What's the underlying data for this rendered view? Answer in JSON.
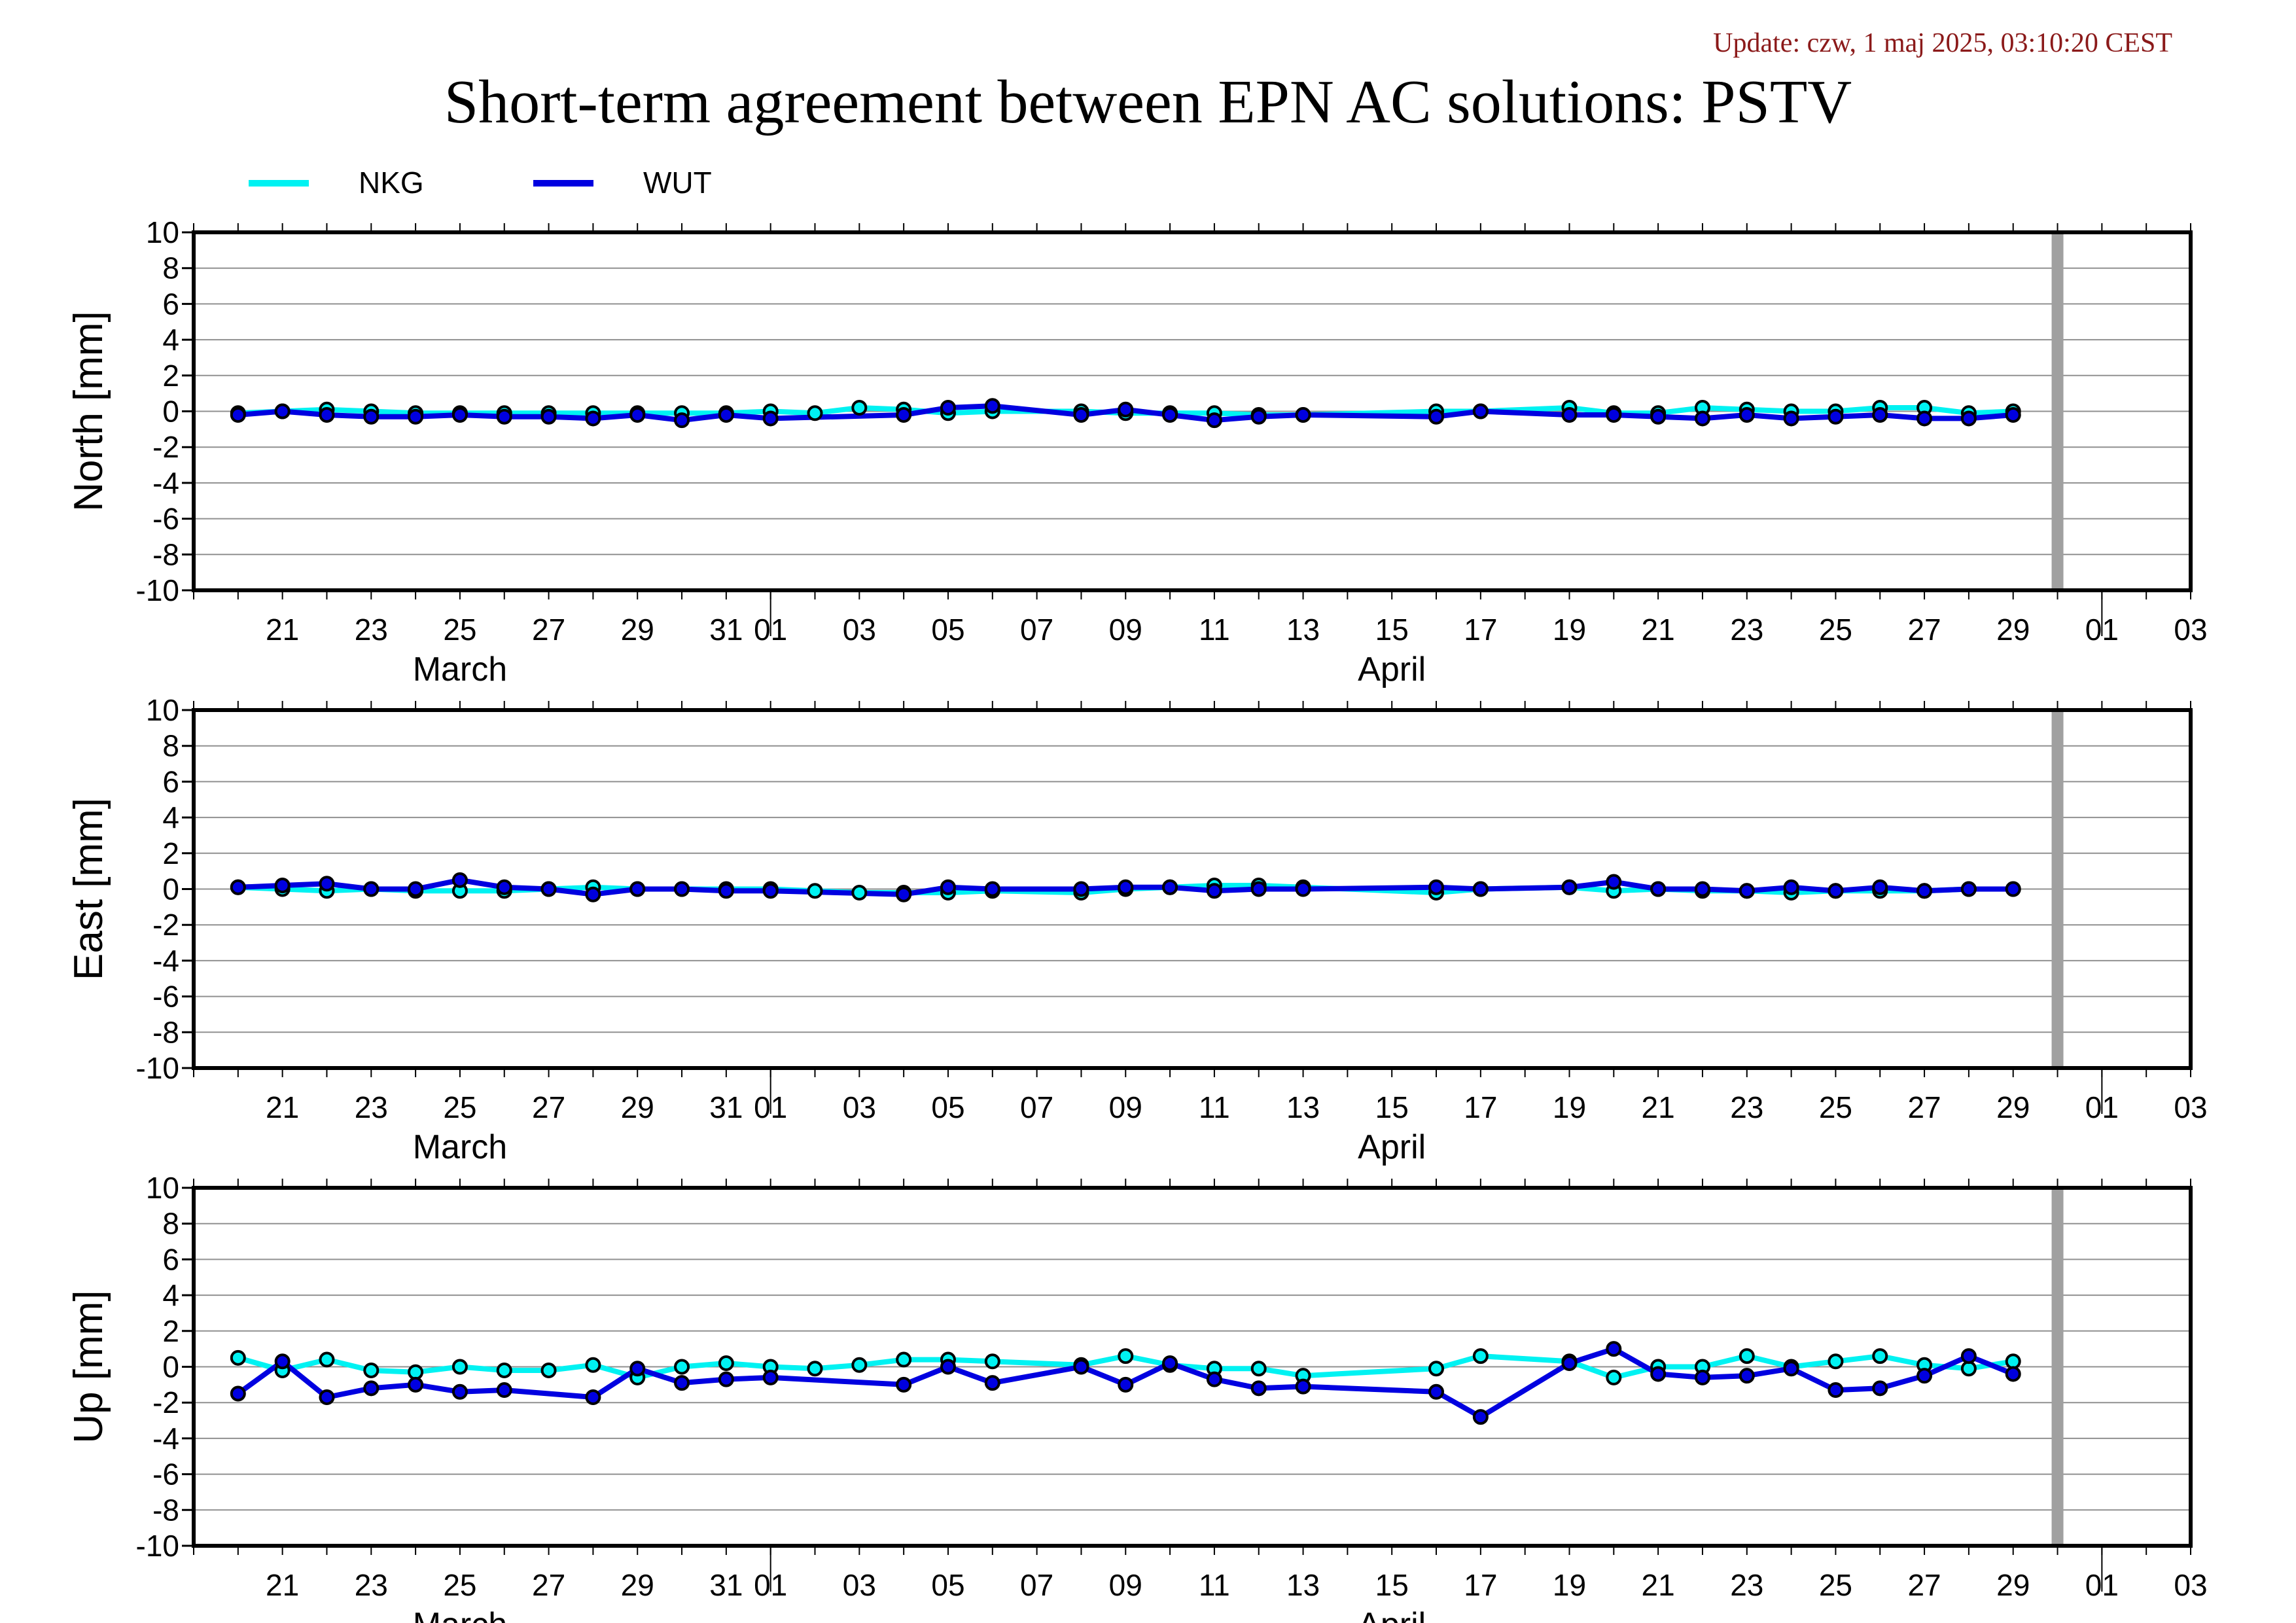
{
  "header": {
    "update": "Update: czw, 1 maj 2025, 03:10:20 CEST",
    "title": "Short-term agreement between EPN AC solutions: PSTV"
  },
  "colors": {
    "NKG": "#00f2f2",
    "WUT": "#0000e0",
    "marker_edge": "#000000",
    "gap_bar": "#a0a0a0"
  },
  "legend": [
    {
      "name": "NKG",
      "color": "#00f2f2"
    },
    {
      "name": "WUT",
      "color": "#0000e0"
    }
  ],
  "chart_data": {
    "type": "line",
    "xaxis": {
      "range": [
        "2025-03-19",
        "2025-05-03"
      ],
      "tick_labels": [
        {
          "date": "2025-03-21",
          "label": "21"
        },
        {
          "date": "2025-03-23",
          "label": "23"
        },
        {
          "date": "2025-03-25",
          "label": "25"
        },
        {
          "date": "2025-03-27",
          "label": "27"
        },
        {
          "date": "2025-03-29",
          "label": "29"
        },
        {
          "date": "2025-03-31",
          "label": "31"
        },
        {
          "date": "2025-04-01",
          "label": "01"
        },
        {
          "date": "2025-04-03",
          "label": "03"
        },
        {
          "date": "2025-04-05",
          "label": "05"
        },
        {
          "date": "2025-04-07",
          "label": "07"
        },
        {
          "date": "2025-04-09",
          "label": "09"
        },
        {
          "date": "2025-04-11",
          "label": "11"
        },
        {
          "date": "2025-04-13",
          "label": "13"
        },
        {
          "date": "2025-04-15",
          "label": "15"
        },
        {
          "date": "2025-04-17",
          "label": "17"
        },
        {
          "date": "2025-04-19",
          "label": "19"
        },
        {
          "date": "2025-04-21",
          "label": "21"
        },
        {
          "date": "2025-04-23",
          "label": "23"
        },
        {
          "date": "2025-04-25",
          "label": "25"
        },
        {
          "date": "2025-04-27",
          "label": "27"
        },
        {
          "date": "2025-04-29",
          "label": "29"
        },
        {
          "date": "2025-05-01",
          "label": "01"
        },
        {
          "date": "2025-05-03",
          "label": "03"
        }
      ],
      "month_boundaries": [
        "2025-04-01",
        "2025-05-01"
      ],
      "month_labels": [
        {
          "date": "2025-03-25",
          "label": "March"
        },
        {
          "date": "2025-04-15",
          "label": "April"
        }
      ],
      "gap_marker_date": "2025-04-30"
    },
    "panels": [
      {
        "ylabel": "North [mm]",
        "ylim": [
          -10,
          10
        ],
        "yticks": [
          "10",
          "8",
          "6",
          "4",
          "2",
          "0",
          "-2",
          "-4",
          "-6",
          "-8",
          "-10"
        ],
        "grid": true,
        "series": [
          {
            "name": "NKG",
            "x": [
              "2025-03-20",
              "2025-03-21",
              "2025-03-22",
              "2025-03-23",
              "2025-03-24",
              "2025-03-25",
              "2025-03-26",
              "2025-03-27",
              "2025-03-28",
              "2025-03-29",
              "2025-03-30",
              "2025-03-31",
              "2025-04-01",
              "2025-04-02",
              "2025-04-03",
              "2025-04-04",
              "2025-04-05",
              "2025-04-06",
              "2025-04-08",
              "2025-04-09",
              "2025-04-10",
              "2025-04-11",
              "2025-04-12",
              "2025-04-13",
              "2025-04-16",
              "2025-04-17",
              "2025-04-19",
              "2025-04-20",
              "2025-04-21",
              "2025-04-22",
              "2025-04-23",
              "2025-04-24",
              "2025-04-25",
              "2025-04-26",
              "2025-04-27",
              "2025-04-28",
              "2025-04-29"
            ],
            "y": [
              -0.1,
              0.0,
              0.1,
              0.0,
              -0.1,
              -0.1,
              -0.1,
              -0.1,
              -0.1,
              -0.1,
              -0.1,
              -0.1,
              0.0,
              -0.1,
              0.2,
              0.1,
              -0.1,
              0.0,
              0.0,
              -0.1,
              -0.1,
              -0.1,
              -0.2,
              -0.2,
              0.0,
              0.0,
              0.2,
              -0.1,
              -0.1,
              0.2,
              0.1,
              0.0,
              0.0,
              0.2,
              0.2,
              -0.1,
              0.0
            ]
          },
          {
            "name": "WUT",
            "x": [
              "2025-03-20",
              "2025-03-21",
              "2025-03-22",
              "2025-03-23",
              "2025-03-24",
              "2025-03-25",
              "2025-03-26",
              "2025-03-27",
              "2025-03-28",
              "2025-03-29",
              "2025-03-30",
              "2025-03-31",
              "2025-04-01",
              "2025-04-04",
              "2025-04-05",
              "2025-04-06",
              "2025-04-08",
              "2025-04-09",
              "2025-04-10",
              "2025-04-11",
              "2025-04-12",
              "2025-04-13",
              "2025-04-16",
              "2025-04-17",
              "2025-04-19",
              "2025-04-20",
              "2025-04-21",
              "2025-04-22",
              "2025-04-23",
              "2025-04-24",
              "2025-04-25",
              "2025-04-26",
              "2025-04-27",
              "2025-04-28",
              "2025-04-29"
            ],
            "y": [
              -0.2,
              0.0,
              -0.2,
              -0.3,
              -0.3,
              -0.2,
              -0.3,
              -0.3,
              -0.4,
              -0.2,
              -0.5,
              -0.2,
              -0.4,
              -0.2,
              0.2,
              0.3,
              -0.2,
              0.1,
              -0.2,
              -0.5,
              -0.3,
              -0.2,
              -0.3,
              0.0,
              -0.2,
              -0.2,
              -0.3,
              -0.4,
              -0.2,
              -0.4,
              -0.3,
              -0.2,
              -0.4,
              -0.4,
              -0.2
            ]
          }
        ]
      },
      {
        "ylabel": "East [mm]",
        "ylim": [
          -10,
          10
        ],
        "yticks": [
          "10",
          "8",
          "6",
          "4",
          "2",
          "0",
          "-2",
          "-4",
          "-6",
          "-8",
          "-10"
        ],
        "grid": true,
        "series": [
          {
            "name": "NKG",
            "x": [
              "2025-03-20",
              "2025-03-21",
              "2025-03-22",
              "2025-03-23",
              "2025-03-24",
              "2025-03-25",
              "2025-03-26",
              "2025-03-27",
              "2025-03-28",
              "2025-03-29",
              "2025-03-30",
              "2025-03-31",
              "2025-04-01",
              "2025-04-02",
              "2025-04-03",
              "2025-04-04",
              "2025-04-05",
              "2025-04-06",
              "2025-04-08",
              "2025-04-09",
              "2025-04-10",
              "2025-04-11",
              "2025-04-12",
              "2025-04-13",
              "2025-04-16",
              "2025-04-17",
              "2025-04-19",
              "2025-04-20",
              "2025-04-21",
              "2025-04-22",
              "2025-04-23",
              "2025-04-24",
              "2025-04-25",
              "2025-04-26",
              "2025-04-27",
              "2025-04-28",
              "2025-04-29"
            ],
            "y": [
              0.1,
              0.0,
              -0.1,
              0.0,
              -0.1,
              -0.1,
              -0.1,
              0.0,
              0.1,
              0.0,
              0.0,
              0.0,
              0.0,
              -0.1,
              -0.2,
              -0.2,
              -0.2,
              -0.1,
              -0.2,
              0.0,
              0.1,
              0.2,
              0.2,
              0.1,
              -0.2,
              0.0,
              0.1,
              -0.1,
              0.0,
              -0.1,
              -0.1,
              -0.2,
              -0.1,
              -0.1,
              -0.1,
              0.0,
              0.0
            ]
          },
          {
            "name": "WUT",
            "x": [
              "2025-03-20",
              "2025-03-21",
              "2025-03-22",
              "2025-03-23",
              "2025-03-24",
              "2025-03-25",
              "2025-03-26",
              "2025-03-27",
              "2025-03-28",
              "2025-03-29",
              "2025-03-30",
              "2025-03-31",
              "2025-04-01",
              "2025-04-04",
              "2025-04-05",
              "2025-04-06",
              "2025-04-08",
              "2025-04-09",
              "2025-04-10",
              "2025-04-11",
              "2025-04-12",
              "2025-04-13",
              "2025-04-16",
              "2025-04-17",
              "2025-04-19",
              "2025-04-20",
              "2025-04-21",
              "2025-04-22",
              "2025-04-23",
              "2025-04-24",
              "2025-04-25",
              "2025-04-26",
              "2025-04-27",
              "2025-04-28",
              "2025-04-29"
            ],
            "y": [
              0.1,
              0.2,
              0.3,
              0.0,
              0.0,
              0.5,
              0.1,
              0.0,
              -0.3,
              0.0,
              0.0,
              -0.1,
              -0.1,
              -0.3,
              0.1,
              0.0,
              0.0,
              0.1,
              0.1,
              -0.1,
              0.0,
              0.0,
              0.1,
              0.0,
              0.1,
              0.4,
              0.0,
              0.0,
              -0.1,
              0.1,
              -0.1,
              0.1,
              -0.1,
              0.0,
              0.0
            ]
          }
        ]
      },
      {
        "ylabel": "Up [mm]",
        "ylim": [
          -10,
          10
        ],
        "yticks": [
          "10",
          "8",
          "6",
          "4",
          "2",
          "0",
          "-2",
          "-4",
          "-6",
          "-8",
          "-10"
        ],
        "grid": true,
        "series": [
          {
            "name": "NKG",
            "x": [
              "2025-03-20",
              "2025-03-21",
              "2025-03-22",
              "2025-03-23",
              "2025-03-24",
              "2025-03-25",
              "2025-03-26",
              "2025-03-27",
              "2025-03-28",
              "2025-03-29",
              "2025-03-30",
              "2025-03-31",
              "2025-04-01",
              "2025-04-02",
              "2025-04-03",
              "2025-04-04",
              "2025-04-05",
              "2025-04-06",
              "2025-04-08",
              "2025-04-09",
              "2025-04-10",
              "2025-04-11",
              "2025-04-12",
              "2025-04-13",
              "2025-04-16",
              "2025-04-17",
              "2025-04-19",
              "2025-04-20",
              "2025-04-21",
              "2025-04-22",
              "2025-04-23",
              "2025-04-24",
              "2025-04-25",
              "2025-04-26",
              "2025-04-27",
              "2025-04-28",
              "2025-04-29"
            ],
            "y": [
              0.5,
              -0.2,
              0.4,
              -0.2,
              -0.3,
              0.0,
              -0.2,
              -0.2,
              0.1,
              -0.6,
              0.0,
              0.2,
              0.0,
              -0.1,
              0.1,
              0.4,
              0.4,
              0.3,
              0.1,
              0.6,
              0.1,
              -0.1,
              -0.1,
              -0.5,
              -0.1,
              0.6,
              0.3,
              -0.6,
              0.0,
              0.0,
              0.6,
              0.0,
              0.3,
              0.6,
              0.1,
              -0.1,
              0.3
            ]
          },
          {
            "name": "WUT",
            "x": [
              "2025-03-20",
              "2025-03-21",
              "2025-03-22",
              "2025-03-23",
              "2025-03-24",
              "2025-03-25",
              "2025-03-26",
              "2025-03-28",
              "2025-03-29",
              "2025-03-30",
              "2025-03-31",
              "2025-04-01",
              "2025-04-04",
              "2025-04-05",
              "2025-04-06",
              "2025-04-08",
              "2025-04-09",
              "2025-04-10",
              "2025-04-11",
              "2025-04-12",
              "2025-04-13",
              "2025-04-16",
              "2025-04-17",
              "2025-04-19",
              "2025-04-20",
              "2025-04-21",
              "2025-04-22",
              "2025-04-23",
              "2025-04-24",
              "2025-04-25",
              "2025-04-26",
              "2025-04-27",
              "2025-04-28",
              "2025-04-29"
            ],
            "y": [
              -1.5,
              0.3,
              -1.7,
              -1.2,
              -1.0,
              -1.4,
              -1.3,
              -1.7,
              -0.1,
              -0.9,
              -0.7,
              -0.6,
              -1.0,
              0.0,
              -0.9,
              0.0,
              -1.0,
              0.2,
              -0.7,
              -1.2,
              -1.1,
              -1.4,
              -2.8,
              0.2,
              1.0,
              -0.4,
              -0.6,
              -0.5,
              -0.1,
              -1.3,
              -1.2,
              -0.5,
              0.6,
              -0.4
            ]
          }
        ]
      }
    ]
  }
}
